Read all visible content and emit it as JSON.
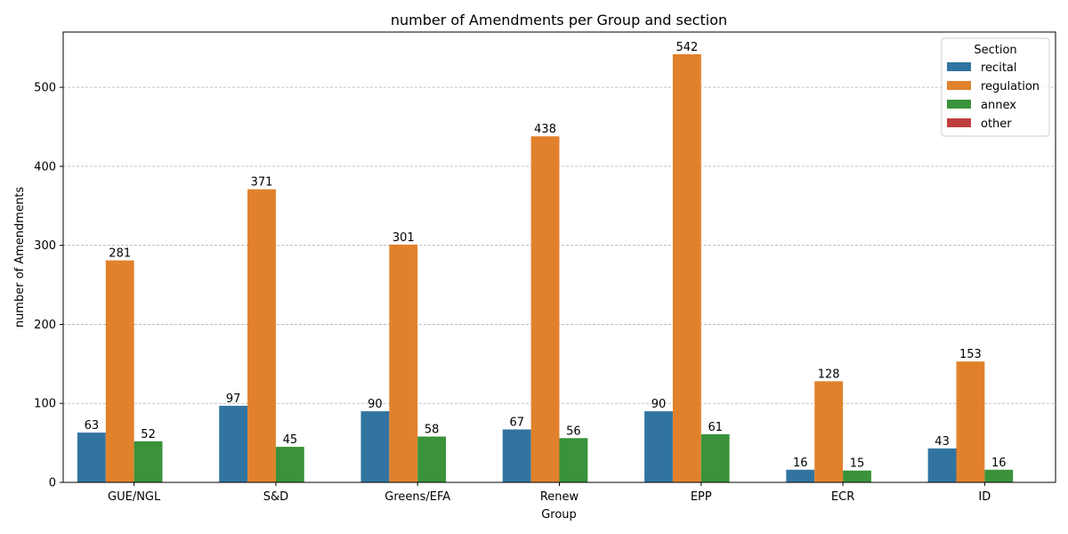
{
  "chart_data": {
    "type": "bar",
    "title": "number of Amendments per Group and section",
    "xlabel": "Group",
    "ylabel": "number of Amendments",
    "categories": [
      "GUE/NGL",
      "S&D",
      "Greens/EFA",
      "Renew",
      "EPP",
      "ECR",
      "ID"
    ],
    "series": [
      {
        "name": "recital",
        "color": "#3274a1",
        "values": [
          63,
          97,
          90,
          67,
          90,
          16,
          43
        ]
      },
      {
        "name": "regulation",
        "color": "#e1812c",
        "values": [
          281,
          371,
          301,
          438,
          542,
          128,
          153
        ]
      },
      {
        "name": "annex",
        "color": "#3a923a",
        "values": [
          52,
          45,
          58,
          56,
          61,
          15,
          16
        ]
      },
      {
        "name": "other",
        "color": "#c03d3e",
        "values": [
          0,
          0,
          0,
          0,
          0,
          0,
          0
        ]
      }
    ],
    "ylim": [
      0,
      570
    ],
    "yticks": [
      0,
      100,
      200,
      300,
      400,
      500
    ],
    "grid": "y-dashed",
    "legend_title": "Section",
    "legend_position": "top-right"
  }
}
